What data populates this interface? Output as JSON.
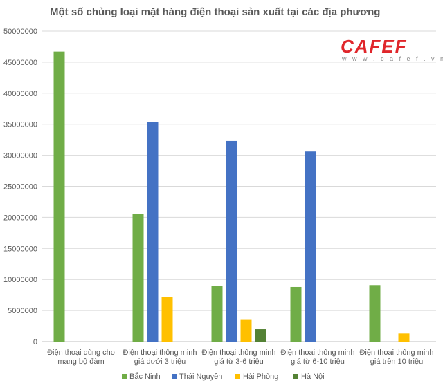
{
  "logo": {
    "brand": "CAFEF",
    "url": "w w w . c a f e f . v n"
  },
  "chart_data": {
    "type": "bar",
    "title": "Một số chủng loại mặt hàng điện thoại sản xuất tại các địa phương",
    "categories": [
      [
        "Điện thoại dùng cho",
        "mạng bộ đàm"
      ],
      [
        "Điện thoại thông minh",
        "giá dưới 3 triệu"
      ],
      [
        "Điện thoại thông minh",
        "giá từ 3-6 triệu"
      ],
      [
        "Điện thoại thông minh",
        "giá từ 6-10 triệu"
      ],
      [
        "Điện thoại thông minh",
        "giá trên 10 triệu"
      ]
    ],
    "series": [
      {
        "name": "Bắc Ninh",
        "color": "#70ad47",
        "values": [
          46700000,
          20600000,
          9000000,
          8800000,
          9100000
        ]
      },
      {
        "name": "Thái Nguyên",
        "color": "#4472c4",
        "values": [
          null,
          35300000,
          32300000,
          30600000,
          null
        ]
      },
      {
        "name": "Hải Phòng",
        "color": "#ffc000",
        "values": [
          null,
          7200000,
          3500000,
          null,
          1300000
        ]
      },
      {
        "name": "Hà Nội",
        "color": "#548235",
        "values": [
          null,
          null,
          2000000,
          null,
          null
        ]
      }
    ],
    "yticks": [
      "0",
      "5000000",
      "10000000",
      "15000000",
      "20000000",
      "25000000",
      "30000000",
      "35000000",
      "40000000",
      "45000000",
      "50000000"
    ],
    "ylim": [
      0,
      50000000
    ],
    "grid": true,
    "legend_position": "bottom",
    "xlabel": "",
    "ylabel": ""
  }
}
